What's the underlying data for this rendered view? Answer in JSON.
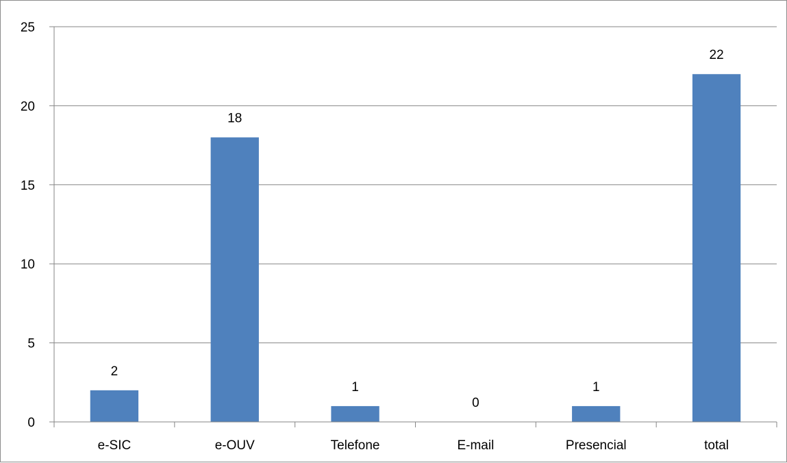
{
  "chart_data": {
    "type": "bar",
    "categories": [
      "e-SIC",
      "e-OUV",
      "Telefone",
      "E-mail",
      "Presencial",
      "total"
    ],
    "values": [
      2,
      18,
      1,
      0,
      1,
      22
    ],
    "data_labels": [
      "2",
      "18",
      "1",
      "0",
      "1",
      "22"
    ],
    "y_ticks": [
      "0",
      "5",
      "10",
      "15",
      "20",
      "25"
    ],
    "ylim": [
      0,
      25
    ],
    "y_tick_step": 5,
    "grid": true,
    "legend": "none",
    "bar_color": "#4f81bd",
    "grid_color": "#868686"
  }
}
